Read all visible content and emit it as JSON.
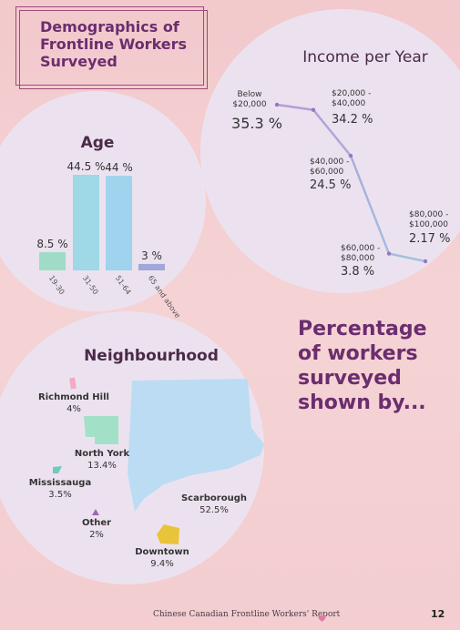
{
  "header": {
    "title": "Demographics of Frontline Workers Surveyed"
  },
  "side_text": "Percentage of workers surveyed shown by...",
  "footer": {
    "report_name": "Chinese Canadian Frontline Workers' Report",
    "page_number": "12",
    "heart_color": "#e07aa6"
  },
  "chart_data": [
    {
      "type": "bar",
      "title": "Age",
      "categories": [
        "19-30",
        "31-50",
        "51-64",
        "65 and above"
      ],
      "values": [
        8.5,
        44.5,
        44,
        3
      ],
      "labels": [
        "8.5 %",
        "44.5 %",
        "44 %",
        "3 %"
      ],
      "colors": [
        "#9fdcc7",
        "#9fd8e6",
        "#9fd3ee",
        "#9fa8d8"
      ],
      "ylim": [
        0,
        44.5
      ]
    },
    {
      "type": "line",
      "title": "Income per Year",
      "categories": [
        "Below $20,000",
        "$20,000 - $40,000",
        "$40,000 - $60,000",
        "$60,000 - $80,000",
        "$80,000 - $100,000"
      ],
      "values": [
        35.3,
        34.2,
        24.5,
        3.8,
        2.17
      ],
      "labels": [
        "35.3 %",
        "34.2 %",
        "24.5 %",
        "3.8 %",
        "2.17 %"
      ],
      "line_colors": [
        "#b79ad8",
        "#9fc4e0"
      ]
    },
    {
      "type": "map",
      "title": "Neighbourhood",
      "regions": [
        {
          "name": "Richmond Hill",
          "value": "4%",
          "color": "#f4a9c4"
        },
        {
          "name": "North York",
          "value": "13.4%",
          "color": "#a3e0c8"
        },
        {
          "name": "Mississauga",
          "value": "3.5%",
          "color": "#6fcab8"
        },
        {
          "name": "Other",
          "value": "2%",
          "color": "#9a6ab0"
        },
        {
          "name": "Scarborough",
          "value": "52.5%",
          "color": "#bcdcf4"
        },
        {
          "name": "Downtown",
          "value": "9.4%",
          "color": "#e8c43a"
        }
      ]
    }
  ]
}
